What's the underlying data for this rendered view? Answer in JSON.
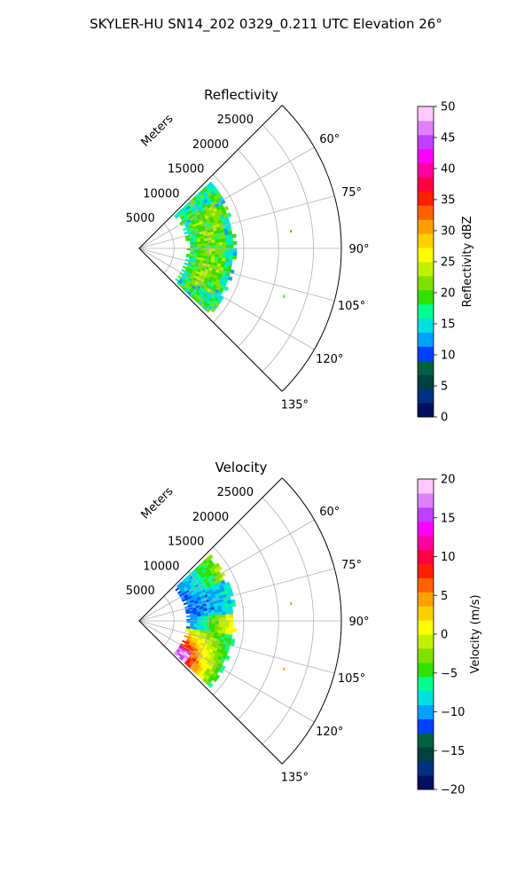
{
  "suptitle": "SKYLER-HU  SN14_202  0329_0.211 UTC Elevation 26°",
  "chart_data": [
    {
      "type": "heatmap",
      "projection": "polar-sector",
      "title": "Reflectivity",
      "range_label": "Meters",
      "range_ticks": [
        5000,
        10000,
        15000,
        20000,
        25000
      ],
      "range_tick_labels": [
        "5000",
        "10000",
        "15000",
        "20000",
        "25000"
      ],
      "theta_ticks": [
        60,
        75,
        90,
        105,
        120,
        135
      ],
      "theta_tick_labels": [
        "60°",
        "75°",
        "90°",
        "105°",
        "120°",
        "135°"
      ],
      "theta_range": [
        45,
        135
      ],
      "r_max": 29000,
      "grid": true,
      "echo": {
        "r_inner": 6800,
        "r_outer": 14000,
        "theta_start": 47,
        "theta_end": 133,
        "dominant_values": [
          13,
          22
        ],
        "description_of_pattern": ""
      },
      "colorbar": {
        "label": "Reflectivity dBZ",
        "vmin": 0,
        "vmax": 50,
        "ticks": [
          0,
          5,
          10,
          15,
          20,
          25,
          30,
          35,
          40,
          45,
          50
        ],
        "tick_labels": [
          "0",
          "5",
          "10",
          "15",
          "20",
          "25",
          "30",
          "35",
          "40",
          "45",
          "50"
        ]
      }
    },
    {
      "type": "heatmap",
      "projection": "polar-sector",
      "title": "Velocity",
      "range_label": "Meters",
      "range_ticks": [
        5000,
        10000,
        15000,
        20000,
        25000
      ],
      "range_tick_labels": [
        "5000",
        "10000",
        "15000",
        "20000",
        "25000"
      ],
      "theta_ticks": [
        60,
        75,
        90,
        105,
        120,
        135
      ],
      "theta_tick_labels": [
        "60°",
        "75°",
        "90°",
        "105°",
        "120°",
        "135°"
      ],
      "theta_range": [
        45,
        135
      ],
      "r_max": 29000,
      "grid": true,
      "echo": {
        "r_inner": 6800,
        "r_outer": 14000,
        "theta_start": 47,
        "theta_end": 133,
        "value_pattern": [
          -10,
          -12,
          0,
          5,
          12,
          18
        ],
        "description_of_pattern": ""
      },
      "colorbar": {
        "label": "Velocity (m/s)",
        "vmin": -20,
        "vmax": 20,
        "ticks": [
          -20,
          -15,
          -10,
          -5,
          0,
          5,
          10,
          15,
          20
        ],
        "tick_labels": [
          "−20",
          "−15",
          "−10",
          "−5",
          "0",
          "5",
          "10",
          "15",
          "20"
        ]
      }
    }
  ],
  "colors": {
    "ring": "#b0b0b0",
    "frame": "#000000",
    "palette": [
      "#001060",
      "#003080",
      "#004040",
      "#006040",
      "#0040ff",
      "#00a0ff",
      "#00e0e0",
      "#00ff90",
      "#30e000",
      "#80e000",
      "#c0f000",
      "#ffff00",
      "#ffd000",
      "#ffa000",
      "#ff6000",
      "#ff2000",
      "#ff0040",
      "#ff00a0",
      "#ff00ff",
      "#c040ff",
      "#e080ff",
      "#ffc8ff"
    ]
  }
}
